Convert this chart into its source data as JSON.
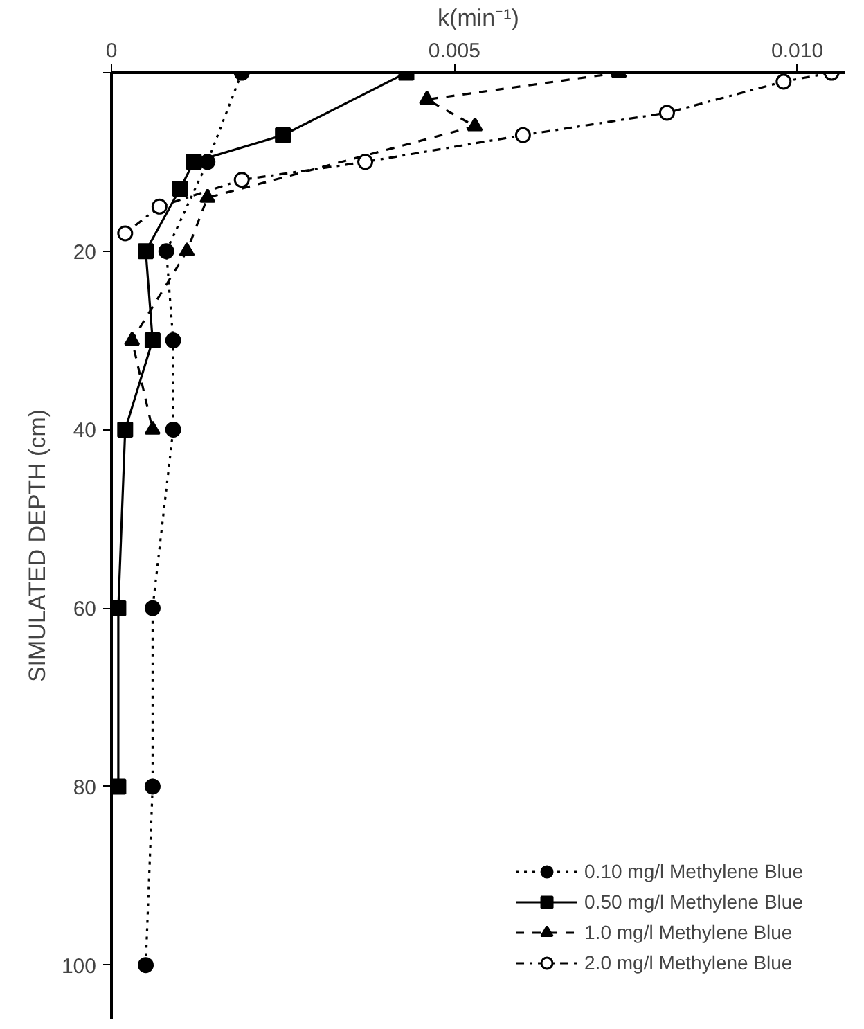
{
  "chart_data": {
    "type": "line",
    "xlabel": "k(min⁻¹)",
    "ylabel": "SIMULATED DEPTH (cm)",
    "xlim": [
      0,
      0.0107
    ],
    "xticks": [
      0,
      {
        "value": 0.005,
        "label": "0.005"
      },
      {
        "value": 0.01,
        "label": "0.010"
      }
    ],
    "ylim": [
      106,
      0
    ],
    "yticks": [
      {
        "value": 0,
        "label": null
      },
      20,
      40,
      60,
      80,
      100
    ],
    "grid": false,
    "legend": "bottom right",
    "series": [
      {
        "name": "0.10 mg/l Methylene Blue",
        "color": "#000000",
        "marker": "circle",
        "line_style": "dotted",
        "x": [
          0.0019,
          0.0014,
          0.0008,
          0.0009,
          0.0009,
          0.0006,
          0.0006,
          0.0005
        ],
        "values": [
          0,
          10,
          20,
          30,
          40,
          60,
          80,
          100
        ]
      },
      {
        "name": "0.50 mg/l Methylene Blue",
        "color": "#000000",
        "marker": "square",
        "line_style": "solid",
        "x": [
          0.0043,
          0.0025,
          0.0012,
          0.001,
          0.0005,
          0.0006,
          0.0002,
          0.0001,
          0.0001
        ],
        "values": [
          0,
          7,
          10,
          13,
          20,
          30,
          40,
          60,
          80
        ]
      },
      {
        "name": "1.0 mg/l Methylene Blue",
        "color": "#000000",
        "marker": "triangle",
        "line_style": "dashed",
        "x": [
          0.0074,
          0.0046,
          0.0053,
          0.0014,
          0.0011,
          0.0003,
          0.0006
        ],
        "values": [
          0,
          3,
          6,
          14,
          20,
          30,
          40
        ]
      },
      {
        "name": "2.0 mg/l Methylene Blue",
        "color": "#000000",
        "marker": "circle",
        "line_style": "dashdot",
        "x": [
          0.0105,
          0.0098,
          0.0081,
          0.006,
          0.0037,
          0.0019,
          0.0007,
          0.0002
        ],
        "values": [
          0,
          1,
          4.5,
          7,
          10,
          12,
          15,
          18
        ]
      }
    ]
  }
}
